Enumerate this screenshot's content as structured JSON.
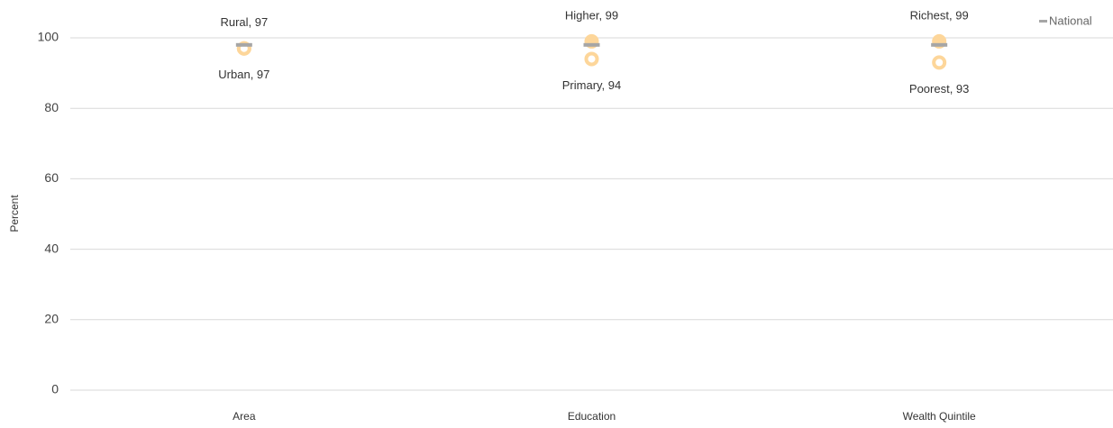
{
  "chart_data": {
    "type": "dot",
    "y_label": "Percent",
    "categories": [
      "Area",
      "Education",
      "Wealth Quintile"
    ],
    "series": [
      {
        "marker": "filled",
        "color": "#fdd69a",
        "values": [
          97,
          99,
          99
        ],
        "value_labels": [
          "Rural, 97",
          "Higher, 99",
          "Richest, 99"
        ]
      },
      {
        "marker": "hollow",
        "color": "#fdd69a",
        "values": [
          97,
          94,
          93
        ],
        "value_labels": [
          "Urban, 97",
          "Primary, 94",
          "Poorest, 93"
        ]
      },
      {
        "name": "National",
        "marker": "dash",
        "color": "#a6a6a6",
        "values": [
          98,
          98,
          98
        ]
      }
    ],
    "ylim": [
      0,
      100
    ],
    "yticks": [
      0,
      20,
      40,
      60,
      80,
      100
    ],
    "grid": true,
    "legend": "top-right"
  }
}
